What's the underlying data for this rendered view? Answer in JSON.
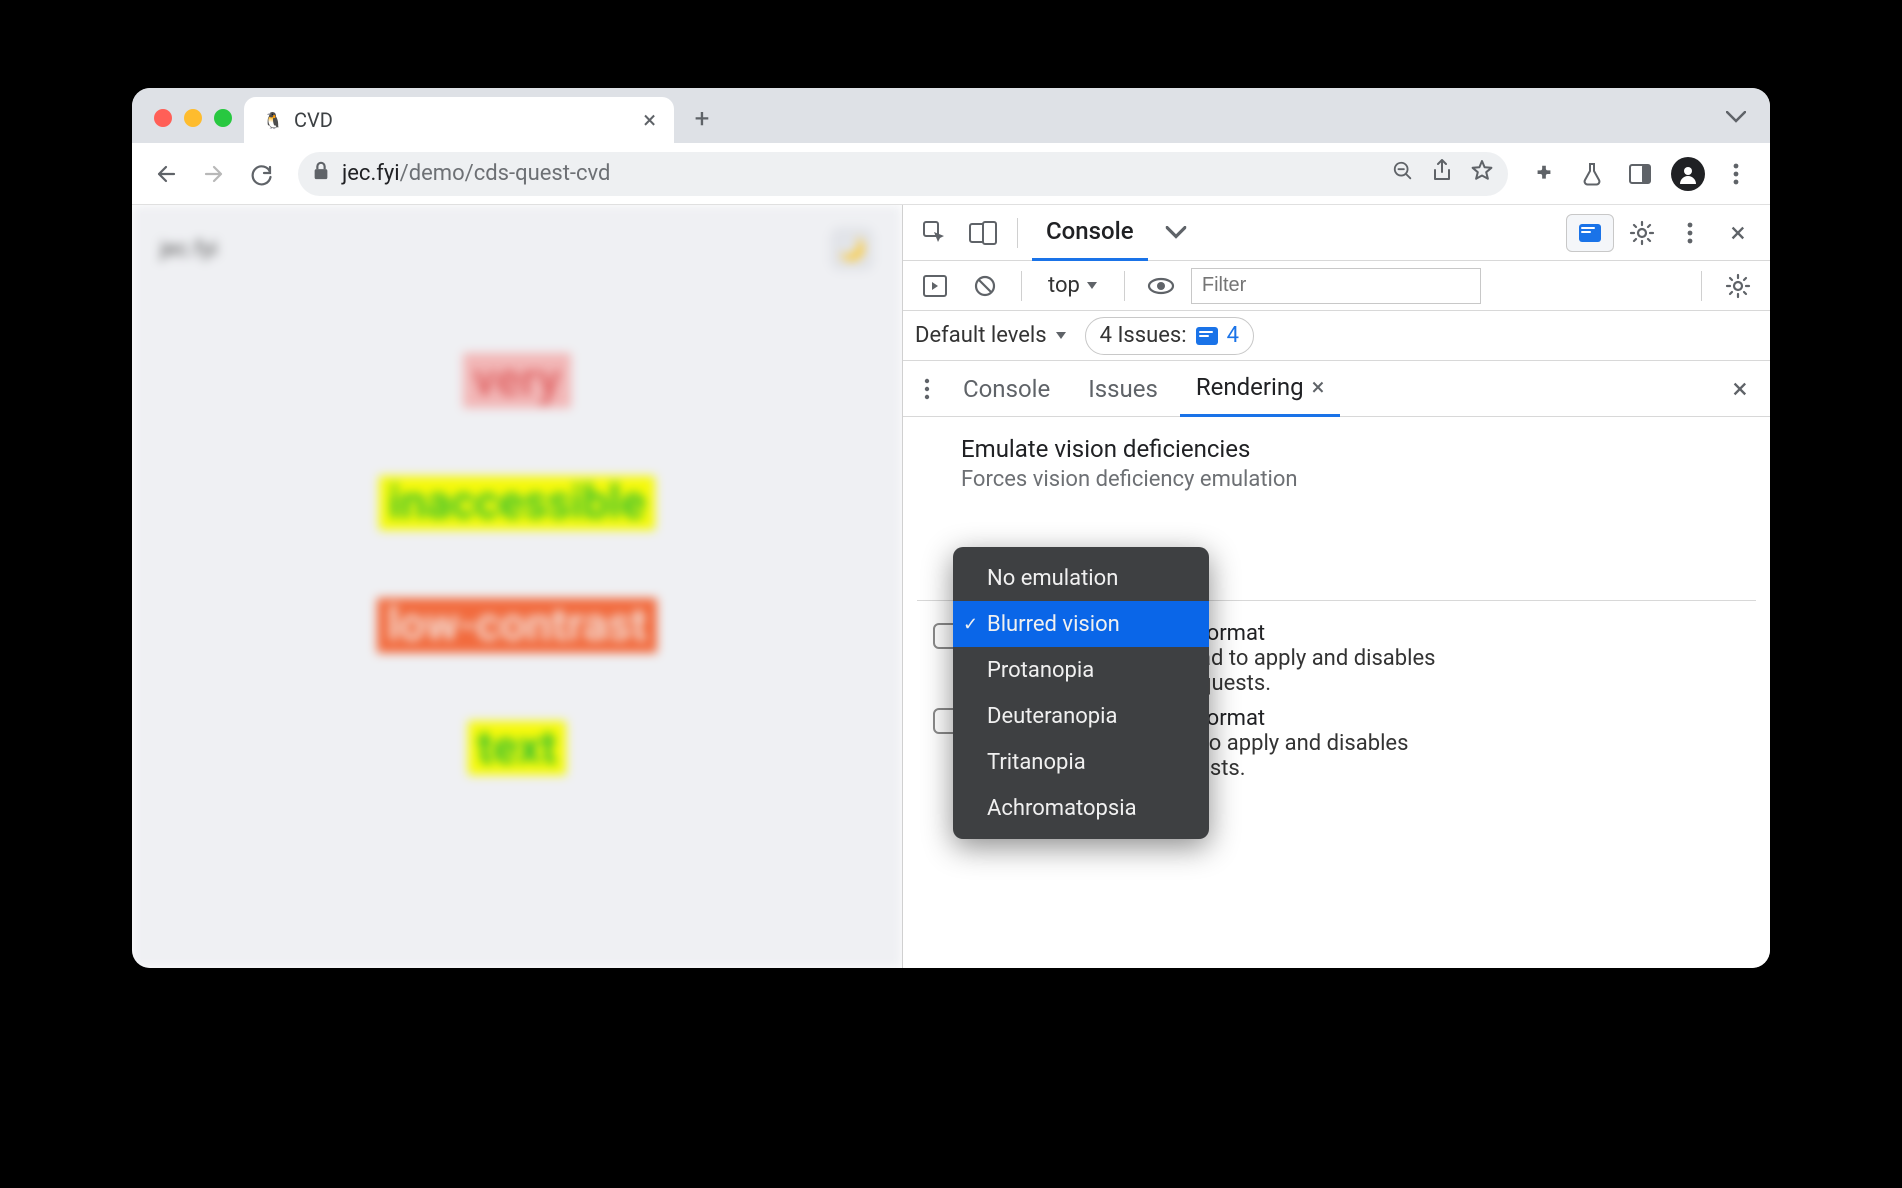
{
  "window": {
    "traffic_colors": [
      "#ff5f57",
      "#febc2e",
      "#28c840"
    ]
  },
  "tab": {
    "title": "CVD",
    "favicon": "🐧"
  },
  "address": {
    "host": "jec.fyi",
    "path": "/demo/cds-quest-cvd"
  },
  "page": {
    "site_label": "jec.fyi",
    "words": [
      {
        "text": "very",
        "bg": "#f2b7b7",
        "fg": "#e06666"
      },
      {
        "text": "inaccessible",
        "bg": "#f6f90b",
        "fg": "#2fbf2f"
      },
      {
        "text": "low-contrast",
        "bg": "#f26b3e",
        "fg": "#f4e1da"
      },
      {
        "text": "text",
        "bg": "#f6f90b",
        "fg": "#2fbf2f"
      }
    ]
  },
  "devtools": {
    "main_tabs": {
      "active": "Console"
    },
    "console_bar": {
      "context": "top",
      "filter_placeholder": "Filter"
    },
    "levels": {
      "label": "Default levels",
      "issues_label": "4 Issues:",
      "issues_count": "4"
    },
    "drawer": {
      "tabs": [
        "Console",
        "Issues",
        "Rendering"
      ],
      "active": "Rendering",
      "rendering": {
        "section_title": "Emulate vision deficiencies",
        "section_sub": "Forces vision deficiency emulation",
        "dropdown": {
          "items": [
            "No emulation",
            "Blurred vision",
            "Protanopia",
            "Deuteranopia",
            "Tritanopia",
            "Achromatopsia"
          ],
          "selected_index": 1
        },
        "format1_title_suffix": "format",
        "format1_line1": "ad to apply and disables",
        "format1_line2": "quests.",
        "format2_title_suffix": "format",
        "format2_line1": "Requires a page reload to apply and disables",
        "format2_line2": "caching for image requests."
      }
    }
  }
}
